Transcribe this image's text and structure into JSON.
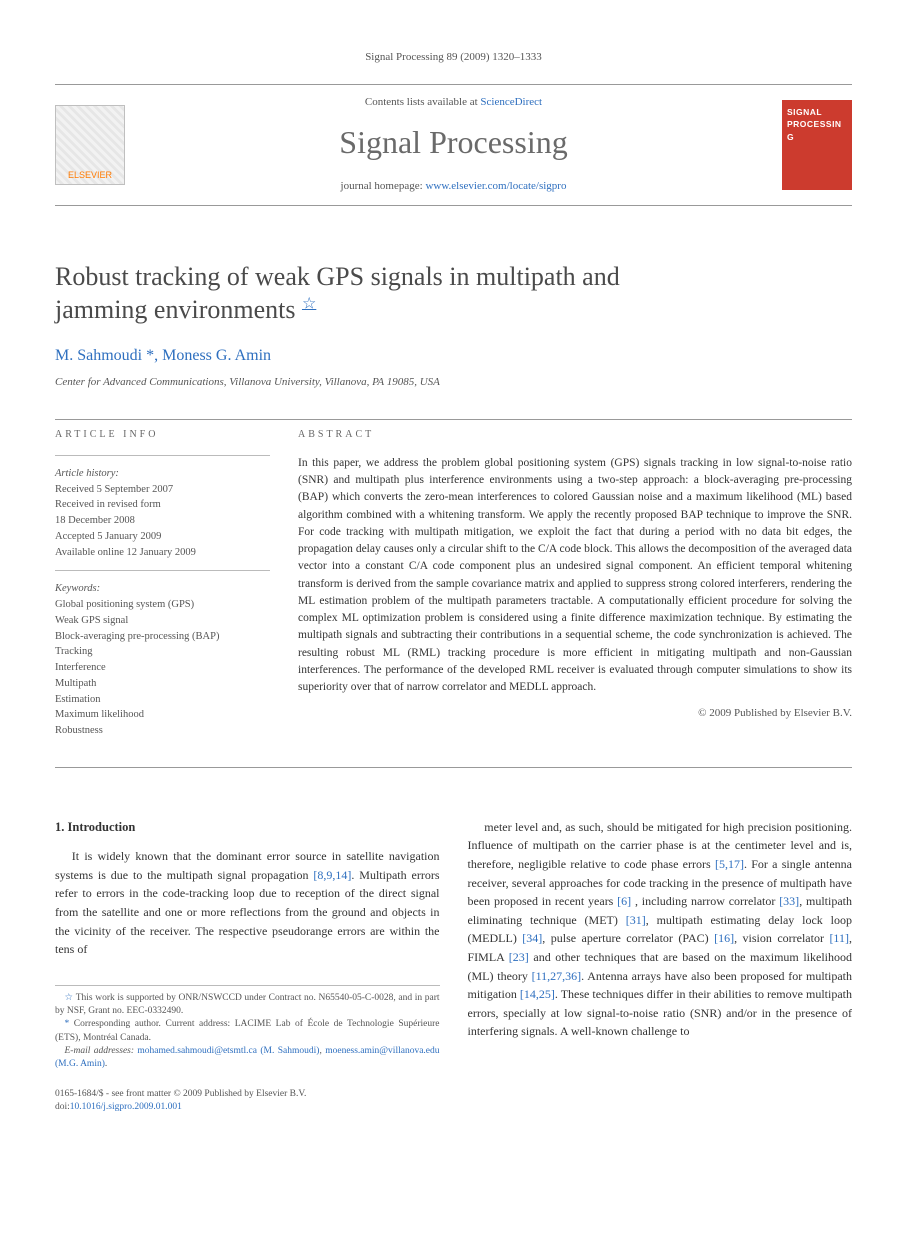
{
  "running_head": "Signal Processing 89 (2009) 1320–1333",
  "masthead": {
    "publisher_logo_text": "ELSEVIER",
    "contents_prefix": "Contents lists available at ",
    "contents_link": "ScienceDirect",
    "journal_name": "Signal Processing",
    "homepage_prefix": "journal homepage: ",
    "homepage_url": "www.elsevier.com/locate/sigpro",
    "cover_badge_line1": "SIGNAL",
    "cover_badge_line2": "PROCESSING"
  },
  "title_line1": "Robust tracking of weak GPS signals in multipath and",
  "title_line2": "jamming environments",
  "title_star": "☆",
  "authors": {
    "a1_name": "M. Sahmoudi",
    "a1_marks": "*,",
    "a2_name": "Moness G. Amin"
  },
  "affiliation": "Center for Advanced Communications, Villanova University, Villanova, PA 19085, USA",
  "meta": {
    "info_head": "ARTICLE INFO",
    "abs_head": "ABSTRACT",
    "history_label": "Article history:",
    "hist1": "Received 5 September 2007",
    "hist2": "Received in revised form",
    "hist3": "18 December 2008",
    "hist4": "Accepted 5 January 2009",
    "hist5": "Available online 12 January 2009",
    "keywords_label": "Keywords:",
    "kw1": "Global positioning system (GPS)",
    "kw2": "Weak GPS signal",
    "kw3": "Block-averaging pre-processing (BAP)",
    "kw4": "Tracking",
    "kw5": "Interference",
    "kw6": "Multipath",
    "kw7": "Estimation",
    "kw8": "Maximum likelihood",
    "kw9": "Robustness"
  },
  "abstract": "In this paper, we address the problem global positioning system (GPS) signals tracking in low signal-to-noise ratio (SNR) and multipath plus interference environments using a two-step approach: a block-averaging pre-processing (BAP) which converts the zero-mean interferences to colored Gaussian noise and a maximum likelihood (ML) based algorithm combined with a whitening transform. We apply the recently proposed BAP technique to improve the SNR. For code tracking with multipath mitigation, we exploit the fact that during a period with no data bit edges, the propagation delay causes only a circular shift to the C/A code block. This allows the decomposition of the averaged data vector into a constant C/A code component plus an undesired signal component. An efficient temporal whitening transform is derived from the sample covariance matrix and applied to suppress strong colored interferers, rendering the ML estimation problem of the multipath parameters tractable. A computationally efficient procedure for solving the complex ML optimization problem is considered using a finite difference maximization technique. By estimating the multipath signals and subtracting their contributions in a sequential scheme, the code synchronization is achieved. The resulting robust ML (RML) tracking procedure is more efficient in mitigating multipath and non-Gaussian interferences. The performance of the developed RML receiver is evaluated through computer simulations to show its superiority over that of narrow correlator and MEDLL approach.",
  "copyright": "© 2009 Published by Elsevier B.V.",
  "body": {
    "sec1_head": "1. Introduction",
    "col1_p1a": "It is widely known that the dominant error source in satellite navigation systems is due to the multipath signal propagation ",
    "col1_ref1": "[8,9,14]",
    "col1_p1b": ". Multipath errors refer to errors in the code-tracking loop due to reception of the direct signal from the satellite and one or more reflections from the ground and objects in the vicinity of the receiver. The respective pseudorange errors are within the tens of",
    "col2_p1a": "meter level and, as such, should be mitigated for high precision positioning. Influence of multipath on the carrier phase is at the centimeter level and is, therefore, negligible relative to code phase errors ",
    "col2_ref1": "[5,17]",
    "col2_p1b": ". For a single antenna receiver, several approaches for code tracking in the presence of multipath have been proposed in recent years ",
    "col2_ref2": "[6]",
    "col2_p1c": " , including narrow correlator ",
    "col2_ref3": "[33]",
    "col2_p1d": ", multipath eliminating technique (MET) ",
    "col2_ref4": "[31]",
    "col2_p1e": ", multipath estimating delay lock loop (MEDLL) ",
    "col2_ref5": "[34]",
    "col2_p1f": ", pulse aperture correlator (PAC) ",
    "col2_ref6": "[16]",
    "col2_p1g": ", vision correlator ",
    "col2_ref7": "[11]",
    "col2_p1h": ", FIMLA ",
    "col2_ref8": "[23]",
    "col2_p1i": " and other techniques that are based on the maximum likelihood (ML) theory ",
    "col2_ref9": "[11,27,36]",
    "col2_p1j": ". Antenna arrays have also been proposed for multipath mitigation ",
    "col2_ref10": "[14,25]",
    "col2_p1k": ". These techniques differ in their abilities to remove multipath errors, specially at low signal-to-noise ratio (SNR) and/or in the presence of interfering signals. A well-known challenge to"
  },
  "footnotes": {
    "fn_star_mark": "☆",
    "fn_star": " This work is supported by ONR/NSWCCD under Contract no. N65540-05-C-0028, and in part by NSF, Grant no. EEC-0332490.",
    "fn_ast_mark": "*",
    "fn_ast": " Corresponding author. Current address: LACIME Lab of École de Technologie Supérieure (ETS), Montréal Canada.",
    "email_label": "E-mail addresses: ",
    "email1": "mohamed.sahmoudi@etsmtl.ca (M. Sahmoudi)",
    "email_sep": ", ",
    "email2": "moeness.amin@villanova.edu (M.G. Amin)",
    "email_end": "."
  },
  "front_matter": {
    "line1": "0165-1684/$ - see front matter © 2009 Published by Elsevier B.V.",
    "doi_prefix": "doi:",
    "doi": "10.1016/j.sigpro.2009.01.001"
  },
  "colors": {
    "link": "#2e6fbf",
    "text": "#333333",
    "muted": "#555555",
    "rule": "#999999",
    "cover_bg": "#cc3b2e",
    "publisher_orange": "#ff7a00"
  }
}
